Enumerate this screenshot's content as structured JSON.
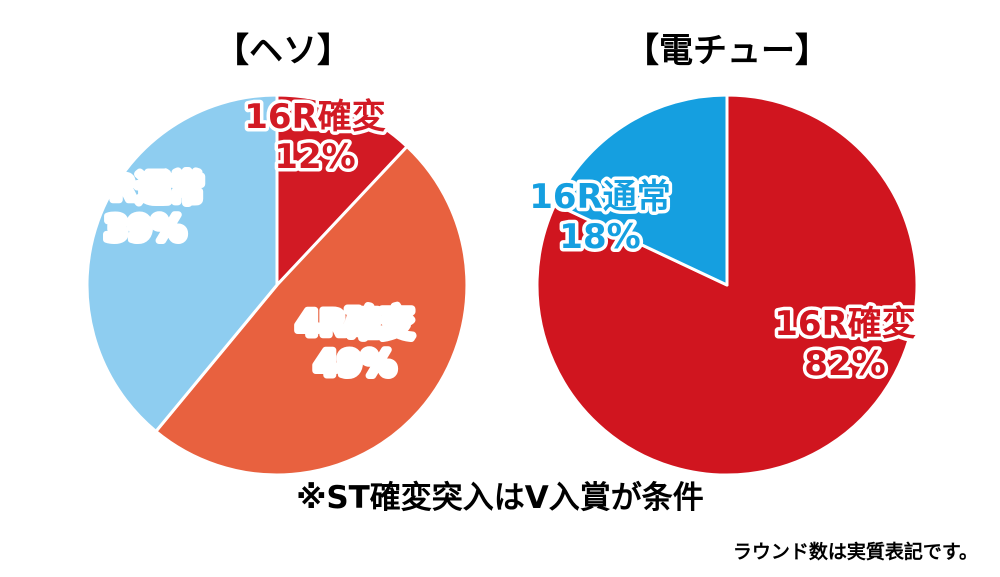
{
  "chart_data": [
    {
      "type": "pie",
      "title": "【ヘソ】",
      "slices": [
        {
          "name": "16R確変",
          "value": 12,
          "display": "12%",
          "color": "#d21a24",
          "label_color": "#d21a24"
        },
        {
          "name": "4R確変",
          "value": 49,
          "display": "49%",
          "color": "#e8613f",
          "label_color": "#ffffff"
        },
        {
          "name": "4R通常",
          "value": 39,
          "display": "39%",
          "color": "#8ecdf0",
          "label_color": "#ffffff"
        }
      ]
    },
    {
      "type": "pie",
      "title": "【電チュー】",
      "slices": [
        {
          "name": "16R確変",
          "value": 82,
          "display": "82%",
          "color": "#d0151f",
          "label_color": "#d0151f"
        },
        {
          "name": "16R通常",
          "value": 18,
          "display": "18%",
          "color": "#159fe0",
          "label_color": "#159fe0"
        }
      ]
    }
  ],
  "notes": {
    "main": "※ST確変突入はV入賞が条件",
    "sub": "ラウンド数は実質表記です。"
  }
}
